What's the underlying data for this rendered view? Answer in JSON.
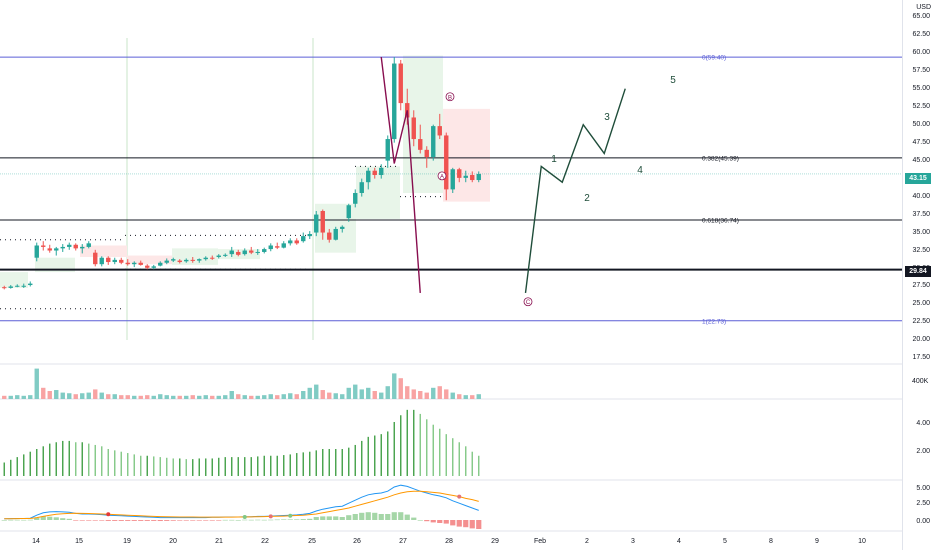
{
  "currency": "USD",
  "price_axis": [
    "65.00",
    "62.50",
    "60.00",
    "57.50",
    "55.00",
    "52.50",
    "50.00",
    "47.50",
    "45.00",
    "42.50",
    "40.00",
    "37.50",
    "35.00",
    "32.50",
    "30.00",
    "27.50",
    "25.00",
    "22.50",
    "20.00",
    "17.50"
  ],
  "volume_axis": "400K",
  "indicator1_axis": [
    "4.00",
    "2.00"
  ],
  "indicator2_axis": [
    "5.00",
    "2.50",
    "0.00"
  ],
  "date_axis": [
    "14",
    "15",
    "19",
    "20",
    "21",
    "22",
    "25",
    "26",
    "27",
    "28",
    "29",
    "Feb",
    "2",
    "3",
    "4",
    "5",
    "8",
    "9",
    "10"
  ],
  "last_price_tag": "43.15",
  "support_price_tag": "29.84",
  "fib_labels": {
    "top": "0(59.40)",
    "f382": "0.382(45.39)",
    "f618": "0.618(36.74)",
    "bottom": "1(22.73)"
  },
  "wave_labels": [
    "1",
    "2",
    "3",
    "4",
    "5"
  ],
  "abc_labels": [
    "A",
    "B",
    "C"
  ],
  "colors": {
    "up": "#26a69a",
    "down": "#ef5350",
    "fib": "#5b5fd6",
    "wave": "#1f4d3a",
    "abc": "#880e4f",
    "vol_up": "#80cbc4",
    "vol_down": "#f8a3a3",
    "osc_green": "#4caf50",
    "macd": "#2196f3",
    "signal": "#ff9800"
  },
  "chart_data": {
    "type": "candlestick",
    "dates": [
      "14",
      "15",
      "19",
      "20",
      "21",
      "22",
      "25",
      "26",
      "27",
      "28",
      "29"
    ],
    "ohlc": [
      [
        27.4,
        27.6,
        27.1,
        27.3
      ],
      [
        27.3,
        27.7,
        27.2,
        27.5
      ],
      [
        27.5,
        27.8,
        27.4,
        27.6
      ],
      [
        27.5,
        27.9,
        27.3,
        27.6
      ],
      [
        27.7,
        28.2,
        27.5,
        27.9
      ],
      [
        31.5,
        33.6,
        31.0,
        33.2
      ],
      [
        33.2,
        33.8,
        32.5,
        33.0
      ],
      [
        32.8,
        33.3,
        32.2,
        32.5
      ],
      [
        32.5,
        33.0,
        31.8,
        32.8
      ],
      [
        32.8,
        33.4,
        32.3,
        33.0
      ],
      [
        33.0,
        33.6,
        32.6,
        33.3
      ],
      [
        33.3,
        33.5,
        32.5,
        32.8
      ],
      [
        32.8,
        33.4,
        32.1,
        33.0
      ],
      [
        33.0,
        33.8,
        32.8,
        33.5
      ],
      [
        32.2,
        32.6,
        30.3,
        30.6
      ],
      [
        30.6,
        31.7,
        30.3,
        31.5
      ],
      [
        31.5,
        31.7,
        30.5,
        30.9
      ],
      [
        30.9,
        31.5,
        30.6,
        31.2
      ],
      [
        31.2,
        31.5,
        30.6,
        30.8
      ],
      [
        30.8,
        31.3,
        30.4,
        30.6
      ],
      [
        30.6,
        31.0,
        30.2,
        30.8
      ],
      [
        30.8,
        31.1,
        30.4,
        30.5
      ],
      [
        30.4,
        30.6,
        29.9,
        30.1
      ],
      [
        30.1,
        30.5,
        29.9,
        30.3
      ],
      [
        30.4,
        31.0,
        30.3,
        30.8
      ],
      [
        30.8,
        31.4,
        30.6,
        31.1
      ],
      [
        31.1,
        31.5,
        30.9,
        31.3
      ],
      [
        31.1,
        31.3,
        30.7,
        30.9
      ],
      [
        31.0,
        31.4,
        30.8,
        31.2
      ],
      [
        31.2,
        31.6,
        30.8,
        31.1
      ],
      [
        31.1,
        31.4,
        30.8,
        31.3
      ],
      [
        31.3,
        31.7,
        31.1,
        31.5
      ],
      [
        31.5,
        31.8,
        31.2,
        31.4
      ],
      [
        31.6,
        32.0,
        31.4,
        31.8
      ],
      [
        31.8,
        32.1,
        31.6,
        31.9
      ],
      [
        32.0,
        33.0,
        31.6,
        32.5
      ],
      [
        32.3,
        32.6,
        31.7,
        31.9
      ],
      [
        32.0,
        32.8,
        31.8,
        32.5
      ],
      [
        32.5,
        33.0,
        32.0,
        32.2
      ],
      [
        32.2,
        32.7,
        31.9,
        32.3
      ],
      [
        32.3,
        32.9,
        32.1,
        32.7
      ],
      [
        32.7,
        33.5,
        32.4,
        33.2
      ],
      [
        33.1,
        33.6,
        32.7,
        32.9
      ],
      [
        32.9,
        33.8,
        32.8,
        33.5
      ],
      [
        33.5,
        34.2,
        33.2,
        33.9
      ],
      [
        33.9,
        34.2,
        33.3,
        33.5
      ],
      [
        33.8,
        35.0,
        33.6,
        34.5
      ],
      [
        34.5,
        35.2,
        34.1,
        34.8
      ],
      [
        35.0,
        38.0,
        34.5,
        37.5
      ],
      [
        38.0,
        38.2,
        34.0,
        35.0
      ],
      [
        35.0,
        35.5,
        33.6,
        34.0
      ],
      [
        34.0,
        35.8,
        33.9,
        35.5
      ],
      [
        35.5,
        36.0,
        35.0,
        35.8
      ],
      [
        37.0,
        39.0,
        36.5,
        38.8
      ],
      [
        39.0,
        41.0,
        38.5,
        40.5
      ],
      [
        40.5,
        42.5,
        40.0,
        42.0
      ],
      [
        42.0,
        44.0,
        41.0,
        43.6
      ],
      [
        43.6,
        44.0,
        42.5,
        43.0
      ],
      [
        43.0,
        44.5,
        42.5,
        44.0
      ],
      [
        45.0,
        48.5,
        44.0,
        48.0
      ],
      [
        48.0,
        59.4,
        47.5,
        58.5
      ],
      [
        58.5,
        59.0,
        52.0,
        53.0
      ],
      [
        53.0,
        55.0,
        50.0,
        51.0
      ],
      [
        51.0,
        52.0,
        47.0,
        48.0
      ],
      [
        48.0,
        50.0,
        46.0,
        46.5
      ],
      [
        46.5,
        47.0,
        44.0,
        45.5
      ],
      [
        45.5,
        50.0,
        45.0,
        49.8
      ],
      [
        49.8,
        51.5,
        48.0,
        48.5
      ],
      [
        48.5,
        48.9,
        39.5,
        41.0
      ],
      [
        41.0,
        44.0,
        40.5,
        43.8
      ],
      [
        43.8,
        44.0,
        42.0,
        42.6
      ],
      [
        42.6,
        43.6,
        42.0,
        42.9
      ],
      [
        43.0,
        43.5,
        42.0,
        42.3
      ],
      [
        42.3,
        43.5,
        42.0,
        43.15
      ]
    ],
    "volume": [
      0.1,
      0.1,
      0.12,
      0.1,
      0.12,
      0.95,
      0.35,
      0.25,
      0.28,
      0.2,
      0.18,
      0.15,
      0.18,
      0.2,
      0.3,
      0.2,
      0.15,
      0.15,
      0.12,
      0.12,
      0.1,
      0.1,
      0.12,
      0.1,
      0.15,
      0.12,
      0.1,
      0.1,
      0.1,
      0.12,
      0.1,
      0.12,
      0.1,
      0.1,
      0.12,
      0.25,
      0.15,
      0.12,
      0.1,
      0.1,
      0.12,
      0.15,
      0.12,
      0.15,
      0.18,
      0.15,
      0.25,
      0.35,
      0.45,
      0.28,
      0.2,
      0.18,
      0.15,
      0.35,
      0.45,
      0.3,
      0.35,
      0.25,
      0.2,
      0.4,
      0.8,
      0.65,
      0.4,
      0.3,
      0.25,
      0.2,
      0.35,
      0.4,
      0.3,
      0.2,
      0.15,
      0.12,
      0.12,
      0.15
    ],
    "oscillator": [
      1.0,
      1.2,
      1.4,
      1.6,
      1.8,
      2.0,
      2.2,
      2.4,
      2.5,
      2.6,
      2.6,
      2.5,
      2.5,
      2.4,
      2.3,
      2.2,
      2.0,
      1.9,
      1.8,
      1.7,
      1.6,
      1.5,
      1.5,
      1.45,
      1.4,
      1.35,
      1.3,
      1.3,
      1.25,
      1.25,
      1.3,
      1.3,
      1.3,
      1.35,
      1.4,
      1.4,
      1.4,
      1.4,
      1.4,
      1.45,
      1.5,
      1.5,
      1.5,
      1.55,
      1.6,
      1.7,
      1.75,
      1.8,
      1.9,
      2.0,
      2.0,
      2.0,
      2.0,
      2.1,
      2.3,
      2.6,
      2.9,
      3.0,
      3.1,
      3.3,
      4.0,
      4.5,
      4.9,
      4.9,
      4.6,
      4.2,
      3.8,
      3.5,
      3.1,
      2.8,
      2.5,
      2.2,
      1.8,
      1.5
    ],
    "macd_line": [
      0.2,
      0.22,
      0.25,
      0.26,
      0.3,
      0.8,
      1.2,
      1.35,
      1.4,
      1.35,
      1.3,
      1.1,
      1.0,
      1.0,
      0.95,
      0.9,
      0.8,
      0.75,
      0.7,
      0.65,
      0.6,
      0.55,
      0.5,
      0.45,
      0.4,
      0.4,
      0.4,
      0.4,
      0.4,
      0.4,
      0.4,
      0.4,
      0.45,
      0.45,
      0.5,
      0.5,
      0.5,
      0.55,
      0.55,
      0.6,
      0.6,
      0.65,
      0.7,
      0.75,
      0.8,
      0.85,
      0.95,
      1.1,
      1.5,
      1.8,
      2.0,
      2.2,
      2.3,
      2.8,
      3.3,
      3.8,
      4.2,
      4.4,
      4.5,
      4.8,
      5.5,
      5.8,
      5.6,
      5.2,
      4.8,
      4.5,
      4.2,
      4.0,
      3.7,
      3.2,
      2.8,
      2.4,
      2.0,
      1.6
    ],
    "signal_line": [
      0.2,
      0.2,
      0.22,
      0.24,
      0.26,
      0.4,
      0.6,
      0.8,
      0.95,
      1.05,
      1.1,
      1.12,
      1.1,
      1.08,
      1.05,
      1.0,
      0.95,
      0.9,
      0.85,
      0.8,
      0.75,
      0.7,
      0.65,
      0.6,
      0.57,
      0.55,
      0.52,
      0.5,
      0.5,
      0.5,
      0.48,
      0.48,
      0.48,
      0.48,
      0.48,
      0.48,
      0.5,
      0.5,
      0.52,
      0.55,
      0.57,
      0.6,
      0.62,
      0.65,
      0.7,
      0.75,
      0.8,
      0.9,
      1.0,
      1.2,
      1.4,
      1.6,
      1.8,
      2.0,
      2.3,
      2.6,
      2.9,
      3.2,
      3.5,
      3.8,
      4.2,
      4.5,
      4.7,
      4.8,
      4.8,
      4.7,
      4.6,
      4.5,
      4.3,
      4.1,
      3.9,
      3.6,
      3.4,
      3.1
    ],
    "fib_levels": [
      {
        "ratio": "0",
        "price": 59.4
      },
      {
        "ratio": "0.382",
        "price": 45.39
      },
      {
        "ratio": "0.618",
        "price": 36.74
      },
      {
        "ratio": "1",
        "price": 22.73
      }
    ],
    "support_line": 29.84,
    "projection_wave": [
      [
        43.0,
        26.6
      ],
      [
        44.5,
        44.2
      ],
      [
        46.5,
        42.0
      ],
      [
        48.5,
        50.0
      ],
      [
        50.5,
        46.0
      ],
      [
        52.5,
        55.0
      ]
    ],
    "abc_path": [
      [
        58.5,
        59.4
      ],
      [
        60.5,
        44.6
      ],
      [
        62.5,
        52.0
      ],
      [
        64.5,
        26.6
      ]
    ],
    "price_range": [
      17.0,
      66.5
    ]
  }
}
